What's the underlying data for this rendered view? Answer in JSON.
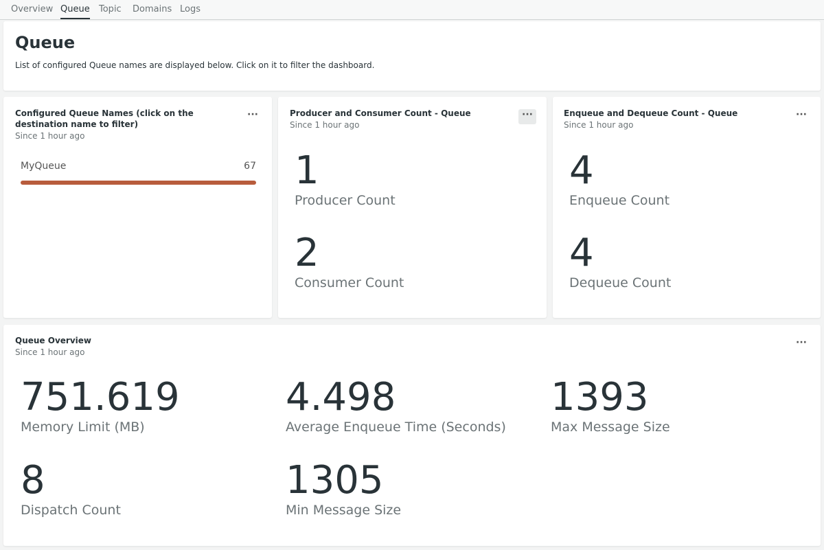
{
  "tabs": [
    "Overview",
    "Queue",
    "Topic",
    "Domains",
    "Logs"
  ],
  "header": {
    "title": "Queue",
    "description": "List of configured Queue names are displayed below. Click on it to filter the dashboard."
  },
  "widgets": [
    {
      "title": "Configured Queue Names (click on the destination name to filter)",
      "subtitle": "Since 1 hour ago",
      "rows": [
        {
          "name": "MyQueue",
          "value": "67"
        }
      ]
    },
    {
      "title": "Producer and Consumer Count - Queue",
      "subtitle": "Since 1 hour ago",
      "stats": [
        {
          "value": "1",
          "label": "Producer Count"
        },
        {
          "value": "2",
          "label": "Consumer Count"
        }
      ]
    },
    {
      "title": "Enqueue and Dequeue Count - Queue",
      "subtitle": "Since 1 hour ago",
      "stats": [
        {
          "value": "4",
          "label": "Enqueue Count"
        },
        {
          "value": "4",
          "label": "Dequeue Count"
        }
      ]
    }
  ],
  "overview": {
    "title": "Queue Overview",
    "subtitle": "Since 1 hour ago",
    "stats": [
      {
        "value": "751.619",
        "label": "Memory Limit (MB)"
      },
      {
        "value": "4.498",
        "label": "Average Enqueue Time (Seconds)"
      },
      {
        "value": "1393",
        "label": "Max Message Size"
      },
      {
        "value": "8",
        "label": "Dispatch Count"
      },
      {
        "value": "1305",
        "label": "Min Message Size"
      }
    ]
  }
}
